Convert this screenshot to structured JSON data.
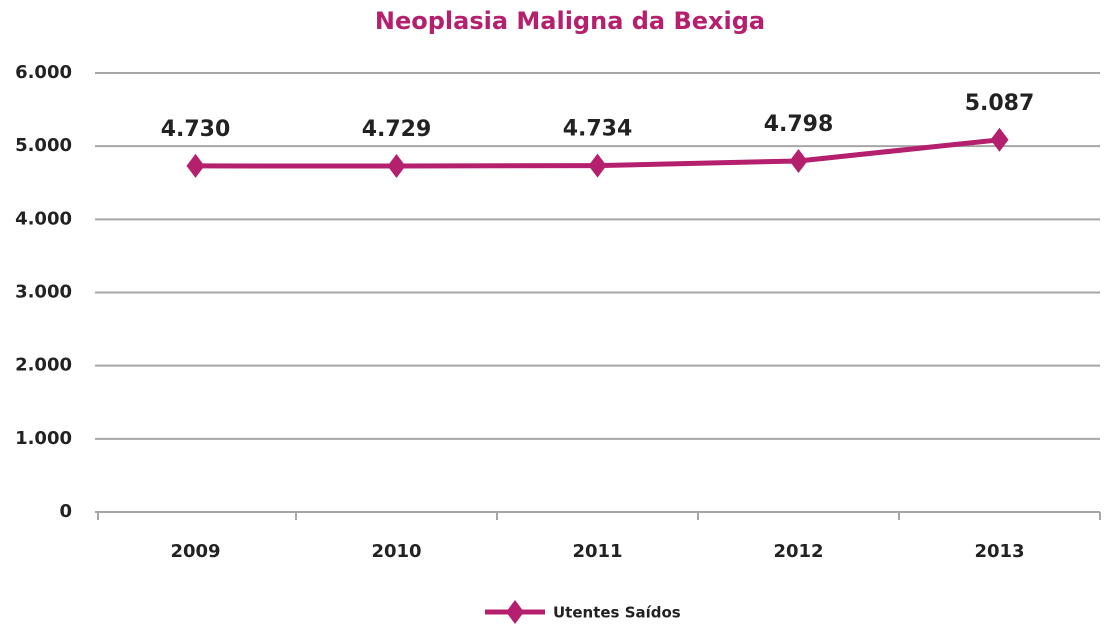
{
  "chart_data": {
    "type": "line",
    "title": "Neoplasia Maligna da Bexiga",
    "categories": [
      "2009",
      "2010",
      "2011",
      "2012",
      "2013"
    ],
    "series": [
      {
        "name": "Utentes Saídos",
        "color": "#b5206e",
        "values": [
          4730,
          4729,
          4734,
          4798,
          5087
        ],
        "value_labels": [
          "4.730",
          "4.729",
          "4.734",
          "4.798",
          "5.087"
        ]
      }
    ],
    "ylim": [
      0,
      6000
    ],
    "yticks": [
      0,
      {
        "value": 1000,
        "label": "1.000"
      },
      {
        "value": 2000,
        "label": "2.000"
      },
      {
        "value": 3000,
        "label": "3.000"
      },
      {
        "value": 4000,
        "label": "4.000"
      },
      {
        "value": 5000,
        "label": "5.000"
      },
      {
        "value": 6000,
        "label": "6.000"
      }
    ],
    "grid": true,
    "legend": "bottom"
  }
}
